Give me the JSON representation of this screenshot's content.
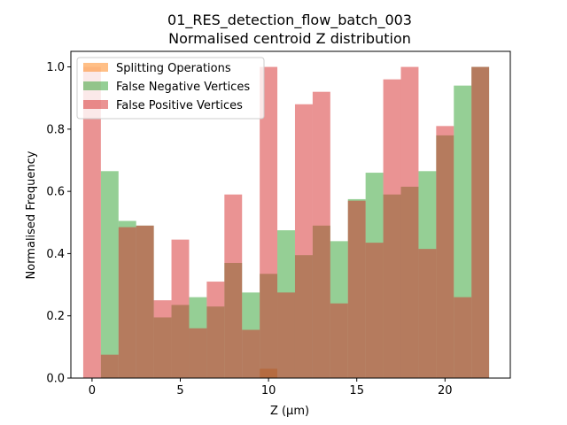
{
  "chart_data": {
    "type": "bar",
    "title": "01_RES_detection_flow_batch_003",
    "subtitle": "Normalised centroid Z distribution",
    "xlabel": "Z (µm)",
    "ylabel": "Normalised Frequency",
    "xlim": [
      -1.2,
      23.7
    ],
    "ylim": [
      0,
      1.05
    ],
    "xticks": [
      0,
      5,
      10,
      15,
      20
    ],
    "yticks": [
      0.0,
      0.2,
      0.4,
      0.6,
      0.8,
      1.0
    ],
    "ytick_labels": [
      "0.0",
      "0.2",
      "0.4",
      "0.6",
      "0.8",
      "1.0"
    ],
    "bin_start": -0.5,
    "bin_width": 1.0,
    "legend_position": "top-left",
    "grid": false,
    "series": [
      {
        "name": "Splitting Operations",
        "color": "#ff7f0e",
        "alpha": 0.5,
        "values": [
          0,
          0,
          0,
          0,
          0,
          0,
          0,
          0,
          0,
          0,
          0.03,
          0,
          0,
          0,
          0,
          0,
          0,
          0,
          0,
          0,
          0,
          0,
          0
        ]
      },
      {
        "name": "False Negative Vertices",
        "color": "#2ca02c",
        "alpha": 0.5,
        "values": [
          0,
          0.665,
          0.505,
          0.49,
          0.195,
          0.235,
          0.26,
          0.23,
          0.37,
          0.275,
          0.335,
          0.475,
          0.395,
          0.49,
          0.44,
          0.575,
          0.66,
          0.59,
          0.615,
          0.665,
          0.78,
          0.94,
          1.0
        ]
      },
      {
        "name": "False Positive Vertices",
        "color": "#d62728",
        "alpha": 0.5,
        "values": [
          1.0,
          0.075,
          0.485,
          0.49,
          0.25,
          0.445,
          0.16,
          0.31,
          0.59,
          0.155,
          1.0,
          0.275,
          0.88,
          0.92,
          0.24,
          0.57,
          0.435,
          0.96,
          1.0,
          0.415,
          0.81,
          0.26,
          1.0
        ]
      }
    ]
  }
}
